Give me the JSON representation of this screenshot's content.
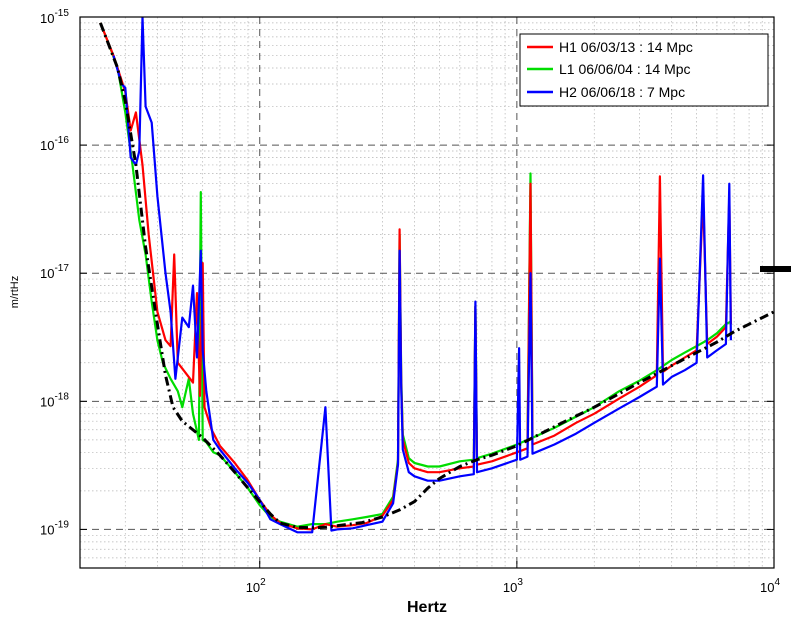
{
  "chart_data": {
    "type": "line",
    "title": "",
    "xlabel": "Hertz",
    "ylabel": "m/rtHz",
    "xscale": "log",
    "yscale": "log",
    "xlim": [
      20,
      10000
    ],
    "ylim": [
      5e-20,
      1e-15
    ],
    "grid": true,
    "legend_position": "top-right",
    "x_ticks": [
      {
        "value": 100,
        "base": "10",
        "exp": "2"
      },
      {
        "value": 1000,
        "base": "10",
        "exp": "3"
      },
      {
        "value": 10000,
        "base": "10",
        "exp": "4"
      }
    ],
    "y_ticks": [
      {
        "value": 1e-19,
        "base": "10",
        "exp": "-19"
      },
      {
        "value": 1e-18,
        "base": "10",
        "exp": "-18"
      },
      {
        "value": 1e-17,
        "base": "10",
        "exp": "-17"
      },
      {
        "value": 1e-16,
        "base": "10",
        "exp": "-16"
      },
      {
        "value": 1e-15,
        "base": "10",
        "exp": "-15"
      }
    ],
    "series": [
      {
        "name": "H1 06/03/13 : 14 Mpc",
        "color": "#ff0000",
        "points": [
          [
            24,
            9e-16
          ],
          [
            27,
            5e-16
          ],
          [
            30,
            2.6e-16
          ],
          [
            31.5,
            1.3e-16
          ],
          [
            33,
            1.8e-16
          ],
          [
            35,
            7e-17
          ],
          [
            37,
            2e-17
          ],
          [
            40,
            5e-18
          ],
          [
            43,
            3e-18
          ],
          [
            45,
            2.7e-18
          ],
          [
            46.5,
            1.4e-17
          ],
          [
            48,
            2e-18
          ],
          [
            50,
            1.8e-18
          ],
          [
            55,
            1.4e-18
          ],
          [
            57,
            7e-18
          ],
          [
            58.5,
            1.1e-18
          ],
          [
            60,
            1.2e-17
          ],
          [
            61,
            9e-19
          ],
          [
            65,
            6e-19
          ],
          [
            70,
            4.5e-19
          ],
          [
            80,
            3.3e-19
          ],
          [
            90,
            2.4e-19
          ],
          [
            100,
            1.7e-19
          ],
          [
            110,
            1.3e-19
          ],
          [
            120,
            1.12e-19
          ],
          [
            140,
            1.02e-19
          ],
          [
            160,
            1e-19
          ],
          [
            180,
            1.1e-19
          ],
          [
            200,
            1.05e-19
          ],
          [
            230,
            1.08e-19
          ],
          [
            260,
            1.12e-19
          ],
          [
            300,
            1.28e-19
          ],
          [
            330,
            1.7e-19
          ],
          [
            345,
            3.3e-19
          ],
          [
            350,
            2.2e-17
          ],
          [
            355,
            1.4e-18
          ],
          [
            360,
            5e-19
          ],
          [
            380,
            3.3e-19
          ],
          [
            400,
            3e-19
          ],
          [
            450,
            2.8e-19
          ],
          [
            500,
            2.8e-19
          ],
          [
            600,
            3e-19
          ],
          [
            680,
            3.1e-19
          ],
          [
            690,
            5.5e-18
          ],
          [
            700,
            3.2e-19
          ],
          [
            800,
            3.4e-19
          ],
          [
            1000,
            4e-19
          ],
          [
            1100,
            4.3e-19
          ],
          [
            1130,
            5e-17
          ],
          [
            1150,
            4.6e-19
          ],
          [
            1400,
            5.4e-19
          ],
          [
            1700,
            6.8e-19
          ],
          [
            2000,
            8e-19
          ],
          [
            2500,
            1.05e-18
          ],
          [
            3000,
            1.3e-18
          ],
          [
            3500,
            1.6e-18
          ],
          [
            3600,
            5.7e-17
          ],
          [
            3700,
            1.7e-18
          ],
          [
            4000,
            1.9e-18
          ],
          [
            4500,
            2.2e-18
          ],
          [
            5000,
            2.5e-18
          ],
          [
            5300,
            4e-17
          ],
          [
            5500,
            2.8e-18
          ],
          [
            6000,
            3.2e-18
          ],
          [
            6500,
            3.8e-18
          ],
          [
            6700,
            4e-17
          ],
          [
            6800,
            4e-18
          ]
        ]
      },
      {
        "name": "L1 06/06/04 : 14 Mpc",
        "color": "#00dd00",
        "points": [
          [
            24,
            9e-16
          ],
          [
            26,
            6e-16
          ],
          [
            28,
            4e-16
          ],
          [
            30,
            1.8e-16
          ],
          [
            32,
            7e-17
          ],
          [
            34,
            2.6e-17
          ],
          [
            36,
            1.4e-17
          ],
          [
            38,
            6e-18
          ],
          [
            40,
            3e-18
          ],
          [
            42,
            2e-18
          ],
          [
            45,
            1.5e-18
          ],
          [
            48,
            1.2e-18
          ],
          [
            50,
            9e-19
          ],
          [
            53,
            1.5e-18
          ],
          [
            55,
            8e-19
          ],
          [
            58,
            5e-19
          ],
          [
            59,
            4.3e-17
          ],
          [
            60,
            5e-19
          ],
          [
            62,
            4.8e-19
          ],
          [
            66,
            4e-19
          ],
          [
            70,
            3.8e-19
          ],
          [
            80,
            2.8e-19
          ],
          [
            90,
            2.1e-19
          ],
          [
            100,
            1.55e-19
          ],
          [
            110,
            1.25e-19
          ],
          [
            120,
            1.15e-19
          ],
          [
            140,
            1.05e-19
          ],
          [
            160,
            1.1e-19
          ],
          [
            180,
            1.1e-19
          ],
          [
            200,
            1.15e-19
          ],
          [
            230,
            1.2e-19
          ],
          [
            260,
            1.25e-19
          ],
          [
            300,
            1.32e-19
          ],
          [
            330,
            1.8e-19
          ],
          [
            345,
            3.5e-19
          ],
          [
            350,
            2e-17
          ],
          [
            355,
            1.6e-18
          ],
          [
            360,
            5.5e-19
          ],
          [
            380,
            3.6e-19
          ],
          [
            400,
            3.3e-19
          ],
          [
            450,
            3.1e-19
          ],
          [
            500,
            3.1e-19
          ],
          [
            600,
            3.4e-19
          ],
          [
            680,
            3.5e-19
          ],
          [
            690,
            5.5e-18
          ],
          [
            700,
            3.6e-19
          ],
          [
            800,
            3.9e-19
          ],
          [
            1000,
            4.6e-19
          ],
          [
            1100,
            5e-19
          ],
          [
            1130,
            6e-17
          ],
          [
            1150,
            5.2e-19
          ],
          [
            1400,
            6.2e-19
          ],
          [
            1700,
            7.6e-19
          ],
          [
            2000,
            9e-19
          ],
          [
            2500,
            1.2e-18
          ],
          [
            3000,
            1.45e-18
          ],
          [
            3500,
            1.75e-18
          ],
          [
            4000,
            2.1e-18
          ],
          [
            4500,
            2.4e-18
          ],
          [
            5000,
            2.7e-18
          ],
          [
            5500,
            3e-18
          ],
          [
            6000,
            3.4e-18
          ],
          [
            6500,
            4e-18
          ],
          [
            6800,
            4.2e-18
          ]
        ]
      },
      {
        "name": "H2 06/06/18 : 7 Mpc",
        "color": "#0000ff",
        "points": [
          [
            27,
            5e-16
          ],
          [
            29,
            3e-16
          ],
          [
            30,
            2.8e-16
          ],
          [
            31.5,
            8e-17
          ],
          [
            33,
            7e-17
          ],
          [
            34,
            9e-17
          ],
          [
            35,
            1e-15
          ],
          [
            36,
            2e-16
          ],
          [
            38,
            1.5e-16
          ],
          [
            40,
            4e-17
          ],
          [
            43,
            1e-17
          ],
          [
            45,
            5e-18
          ],
          [
            47,
            1.5e-18
          ],
          [
            50,
            4.5e-18
          ],
          [
            53,
            3.8e-18
          ],
          [
            55,
            8e-18
          ],
          [
            57,
            2.2e-18
          ],
          [
            59,
            1.5e-17
          ],
          [
            60,
            2.5e-18
          ],
          [
            62,
            1.2e-18
          ],
          [
            66,
            5e-19
          ],
          [
            70,
            4.2e-19
          ],
          [
            80,
            3e-19
          ],
          [
            90,
            2.3e-19
          ],
          [
            100,
            1.7e-19
          ],
          [
            110,
            1.2e-19
          ],
          [
            120,
            1.1e-19
          ],
          [
            140,
            9.5e-20
          ],
          [
            160,
            9.5e-20
          ],
          [
            180,
            9e-19
          ],
          [
            190,
            9.8e-20
          ],
          [
            200,
            1e-19
          ],
          [
            230,
            1.02e-19
          ],
          [
            260,
            1.08e-19
          ],
          [
            300,
            1.15e-19
          ],
          [
            330,
            1.6e-19
          ],
          [
            345,
            3.2e-19
          ],
          [
            350,
            1.5e-17
          ],
          [
            355,
            1.3e-18
          ],
          [
            360,
            4.2e-19
          ],
          [
            380,
            2.8e-19
          ],
          [
            400,
            2.6e-19
          ],
          [
            450,
            2.4e-19
          ],
          [
            500,
            2.4e-19
          ],
          [
            600,
            2.6e-19
          ],
          [
            680,
            2.7e-19
          ],
          [
            690,
            6e-18
          ],
          [
            700,
            2.8e-19
          ],
          [
            800,
            3e-19
          ],
          [
            1000,
            3.5e-19
          ],
          [
            1020,
            2.6e-18
          ],
          [
            1030,
            3.5e-19
          ],
          [
            1100,
            3.7e-19
          ],
          [
            1130,
            1e-17
          ],
          [
            1150,
            3.9e-19
          ],
          [
            1400,
            4.6e-19
          ],
          [
            1700,
            5.6e-19
          ],
          [
            2000,
            6.8e-19
          ],
          [
            2500,
            8.8e-19
          ],
          [
            3000,
            1.08e-18
          ],
          [
            3500,
            1.3e-18
          ],
          [
            3600,
            1.3e-17
          ],
          [
            3700,
            1.35e-18
          ],
          [
            4000,
            1.55e-18
          ],
          [
            4500,
            1.75e-18
          ],
          [
            5000,
            2e-18
          ],
          [
            5300,
            5.8e-17
          ],
          [
            5500,
            2.2e-18
          ],
          [
            6000,
            2.5e-18
          ],
          [
            6500,
            2.8e-18
          ],
          [
            6700,
            5e-17
          ],
          [
            6800,
            3e-18
          ]
        ]
      },
      {
        "name": "",
        "color": "#000000",
        "style": "dash-dot",
        "points": [
          [
            24,
            9e-16
          ],
          [
            28,
            4e-16
          ],
          [
            30,
            2.2e-16
          ],
          [
            33,
            7e-17
          ],
          [
            36,
            1.6e-17
          ],
          [
            40,
            4e-18
          ],
          [
            43,
            1.6e-18
          ],
          [
            46,
            9e-19
          ],
          [
            50,
            7e-19
          ],
          [
            60,
            5.2e-19
          ],
          [
            70,
            3.8e-19
          ],
          [
            80,
            2.8e-19
          ],
          [
            90,
            2.1e-19
          ],
          [
            100,
            1.65e-19
          ],
          [
            110,
            1.32e-19
          ],
          [
            120,
            1.12e-19
          ],
          [
            140,
            1.04e-19
          ],
          [
            160,
            1.03e-19
          ],
          [
            180,
            1.04e-19
          ],
          [
            200,
            1.07e-19
          ],
          [
            250,
            1.13e-19
          ],
          [
            300,
            1.25e-19
          ],
          [
            350,
            1.42e-19
          ],
          [
            400,
            1.65e-19
          ],
          [
            450,
            2.1e-19
          ],
          [
            500,
            2.5e-19
          ],
          [
            600,
            3.1e-19
          ],
          [
            700,
            3.5e-19
          ],
          [
            800,
            3.8e-19
          ],
          [
            1000,
            4.5e-19
          ],
          [
            1500,
            6.8e-19
          ],
          [
            2000,
            9e-19
          ],
          [
            3000,
            1.4e-18
          ],
          [
            4000,
            1.9e-18
          ],
          [
            5000,
            2.4e-18
          ],
          [
            6000,
            2.9e-18
          ],
          [
            7000,
            3.5e-18
          ],
          [
            8000,
            4e-18
          ],
          [
            10000,
            5e-18
          ]
        ]
      }
    ]
  }
}
